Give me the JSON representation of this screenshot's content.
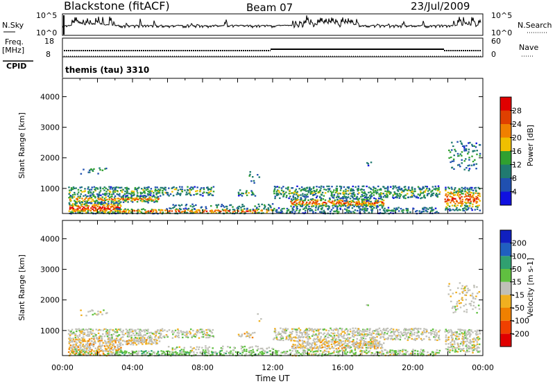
{
  "header": {
    "station": "Blackstone (fitACF)",
    "beam": "Beam 07",
    "date": "23/Jul/2009"
  },
  "top_panels": {
    "nsky": {
      "label": "N.Sky",
      "tick_top": "10^5",
      "tick_bottom": "10^0",
      "right_label": "N.Search",
      "right_tick_top": "10^5",
      "right_tick_bottom": "10^0"
    },
    "freq": {
      "label": "Freq.",
      "unit": "[MHz]",
      "tick_top": "18",
      "tick_bottom": "8",
      "right_label": "Nave",
      "right_tick_top": "60",
      "right_tick_bottom": "0"
    },
    "cpid": {
      "label": "CPID",
      "value": "themis (tau) 3310"
    }
  },
  "colors": {
    "power_scale": [
      "#1010e0",
      "#2050b0",
      "#207a70",
      "#30a030",
      "#f0c000",
      "#f08000",
      "#e04000",
      "#e00000"
    ],
    "velocity_scale": [
      "#e00000",
      "#f04000",
      "#f08000",
      "#f0b020",
      "#c0c0b8",
      "#60c040",
      "#30a070",
      "#2060c0",
      "#1020c0"
    ],
    "velocity_fill_ground": "#c0c0b8"
  },
  "chart_data": [
    {
      "type": "heatmap",
      "name": "power-panel",
      "ylabel": "Slant Range [km]",
      "yticks": [
        1000,
        2000,
        3000,
        4000
      ],
      "ylim": [
        180,
        4600
      ],
      "xlim": [
        0,
        24
      ],
      "colorbar": {
        "label": "Power [dB]",
        "ticks": [
          "4",
          "8",
          "12",
          "16",
          "20",
          "24",
          "28"
        ],
        "range": [
          0,
          30
        ]
      }
    },
    {
      "type": "heatmap",
      "name": "velocity-panel",
      "ylabel": "Slant Range [km]",
      "yticks": [
        1000,
        2000,
        3000,
        4000
      ],
      "ylim": [
        180,
        4600
      ],
      "xlim": [
        0,
        24
      ],
      "xticks": [
        "00:00",
        "04:00",
        "08:00",
        "12:00",
        "16:00",
        "20:00",
        "00:00"
      ],
      "xlabel": "Time UT",
      "colorbar": {
        "label": "Velocity [m s-1]",
        "ticks": [
          "200",
          "100",
          "50",
          "15",
          "-15",
          "-50",
          "-100",
          "-200"
        ]
      }
    }
  ]
}
